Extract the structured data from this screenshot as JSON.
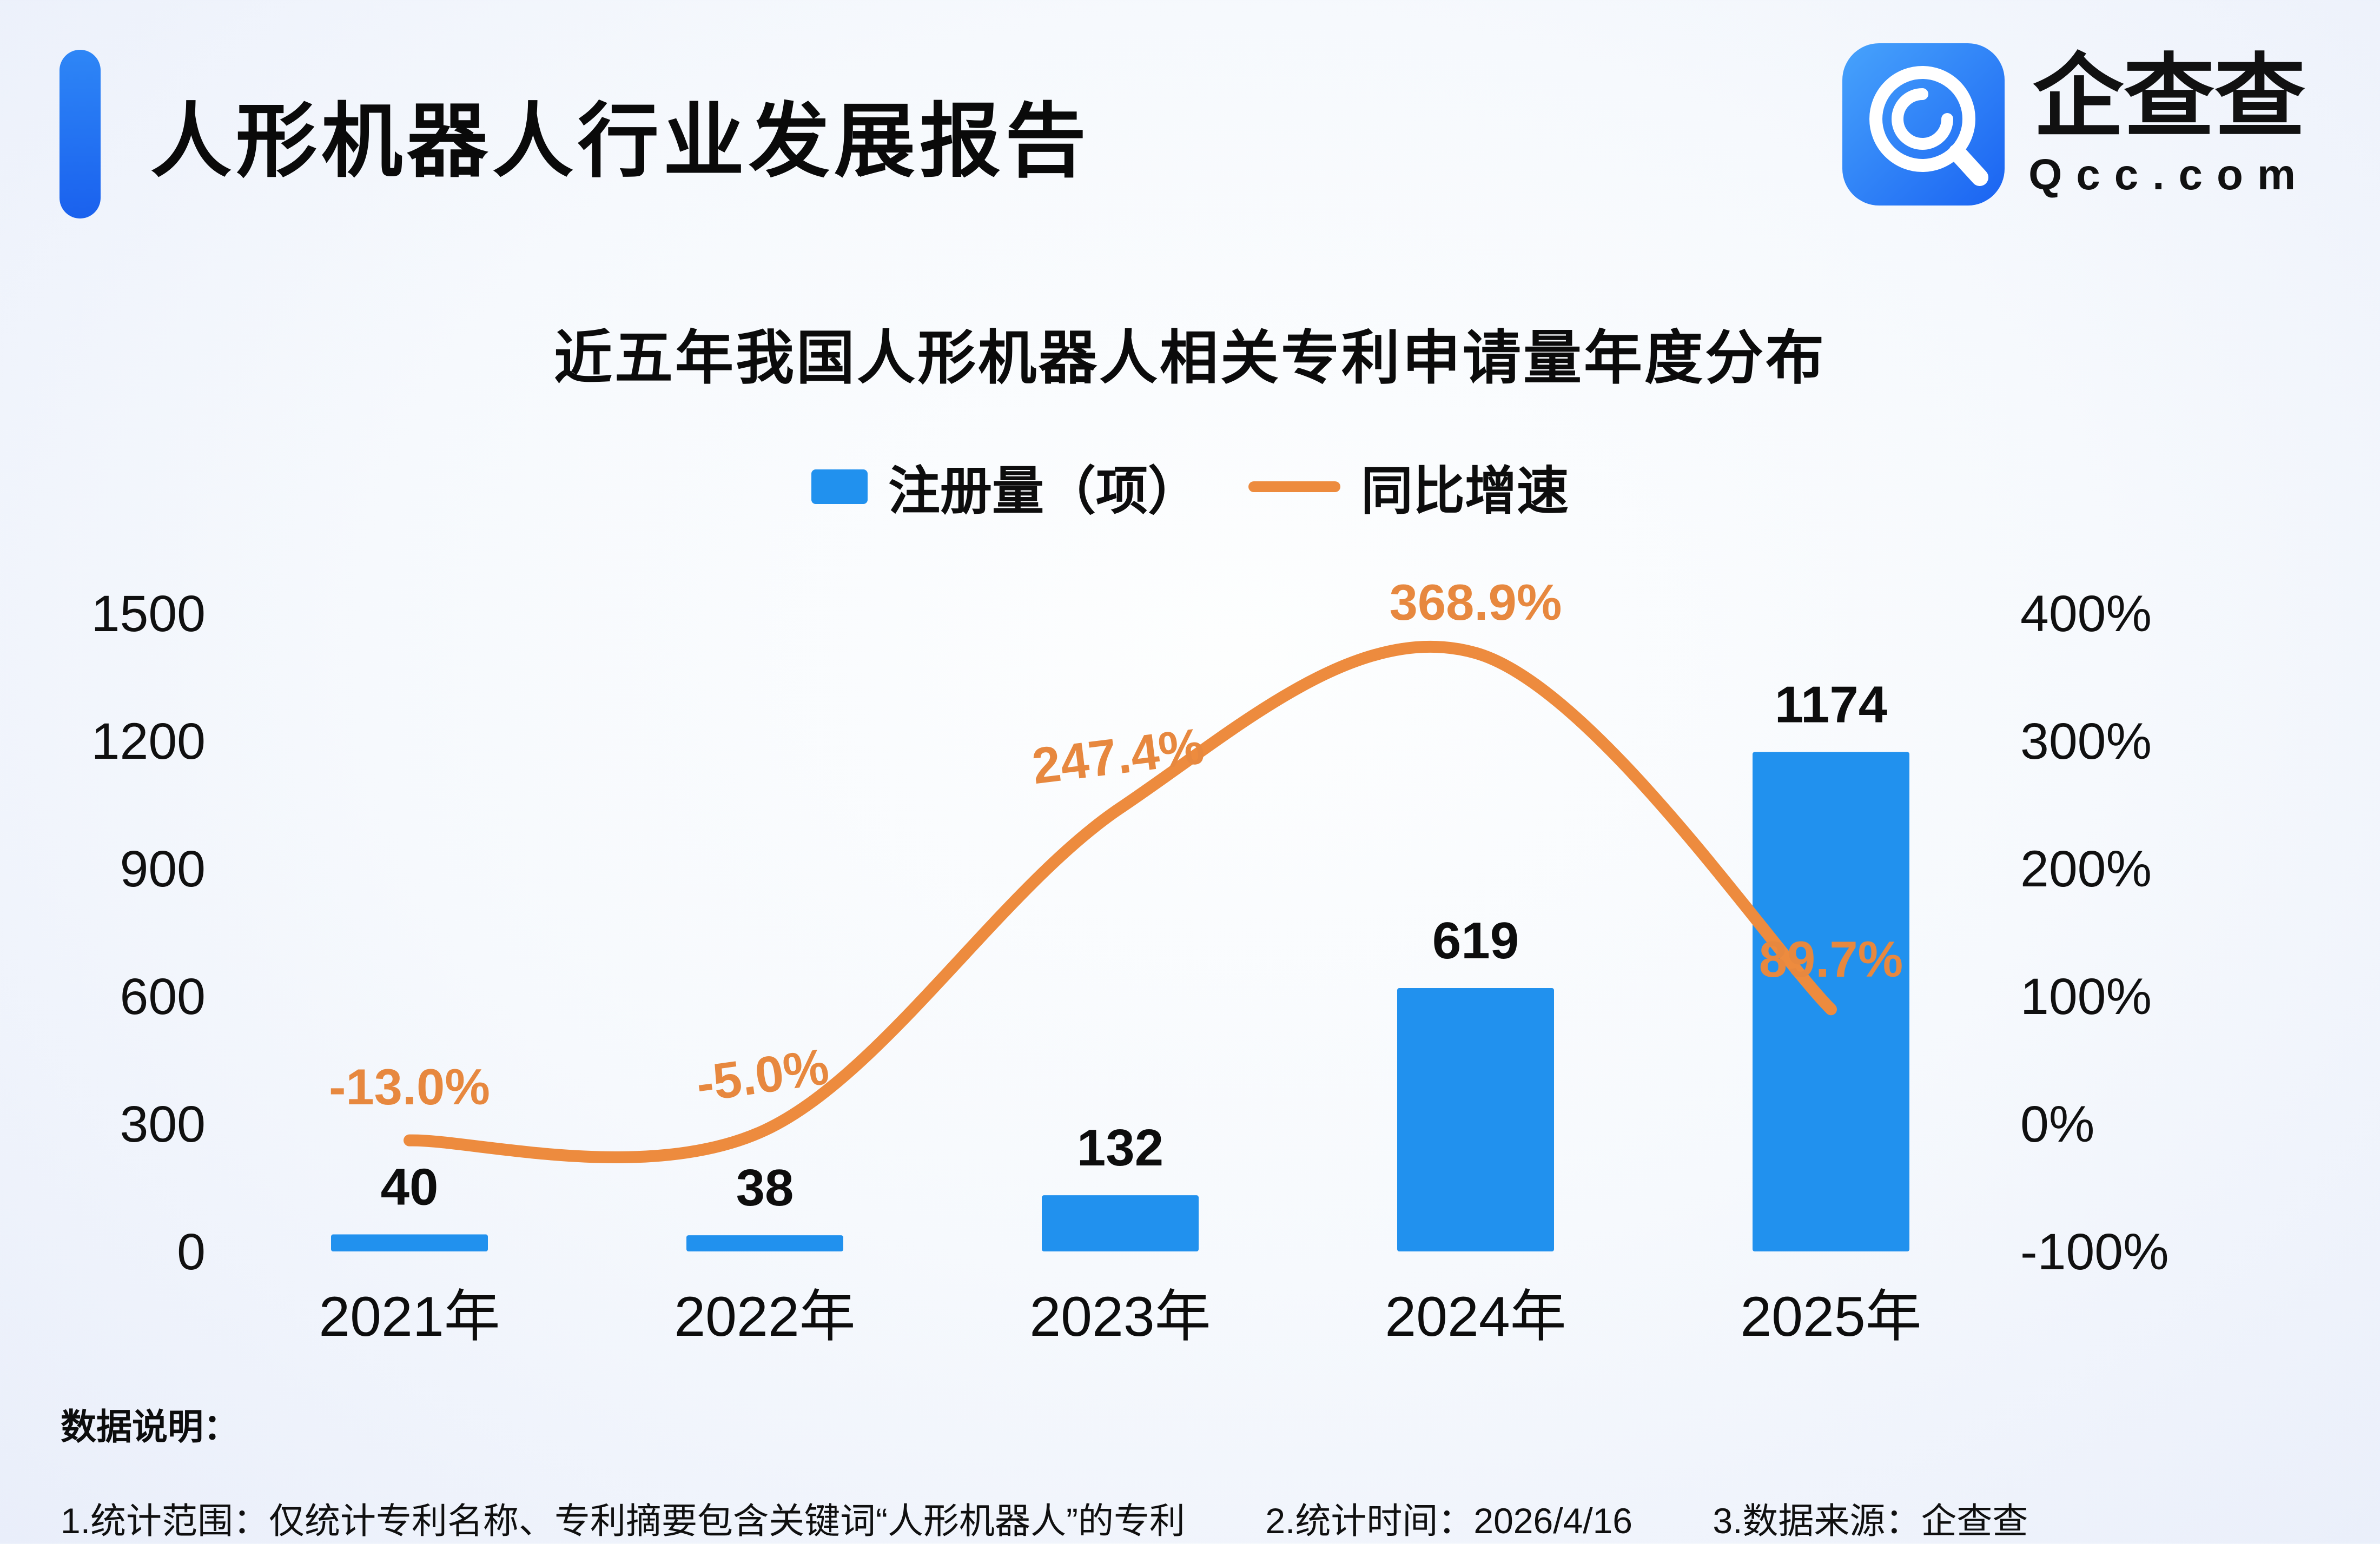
{
  "page": {
    "title": "人形机器人行业发展报告",
    "logo": {
      "brand": "企查查",
      "domain": "Qcc.com"
    },
    "colors": {
      "accent_blue": "#2191ee",
      "line_orange": "#ed8b3e"
    }
  },
  "chart_data": {
    "type": "bar",
    "title": "近五年我国人形机器人相关专利申请量年度分布",
    "categories": [
      "2021年",
      "2022年",
      "2023年",
      "2024年",
      "2025年"
    ],
    "series": [
      {
        "name": "注册量（项）",
        "type": "bar",
        "values": [
          40,
          38,
          132,
          619,
          1174
        ],
        "color": "#2191ee"
      },
      {
        "name": "同比增速",
        "type": "line",
        "values_pct": [
          -13.0,
          -5.0,
          247.4,
          368.9,
          89.7
        ],
        "labels": [
          "-13.0%",
          "-5.0%",
          "247.4%",
          "368.9%",
          "89.7%"
        ],
        "color": "#ed8b3e",
        "label_color": "#e7883f"
      }
    ],
    "left_axis": {
      "ticks": [
        0,
        300,
        600,
        900,
        1200,
        1500
      ],
      "range": [
        0,
        1500
      ]
    },
    "right_axis": {
      "ticks": [
        "-100%",
        "0%",
        "100%",
        "200%",
        "300%",
        "400%"
      ],
      "range_pct": [
        -100,
        400
      ]
    },
    "legend_position": "top",
    "grid": false
  },
  "footer": {
    "label": "数据说明：",
    "notes": [
      "1.统计范围：仅统计专利名称、专利摘要包含关键词“人形机器人”的专利",
      "2.统计时间：2026/4/16",
      "3.数据来源：企查查"
    ]
  }
}
